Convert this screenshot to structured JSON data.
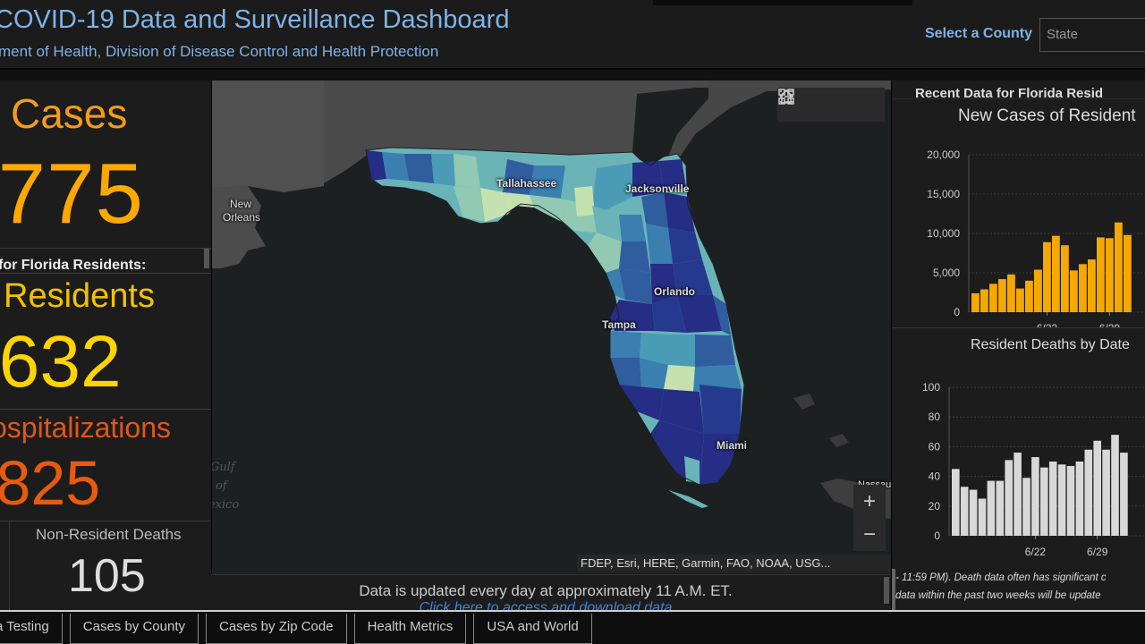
{
  "header": {
    "title": "COVID-19 Data and Surveillance Dashboard",
    "subtitle": "ment of Health, Division of Disease Control and Health Protection",
    "county_label": "Select a County",
    "county_select_value": "State"
  },
  "left": {
    "cases_label": "Cases",
    "cases_value": ",775",
    "residents_caption": "for Florida Residents:",
    "residents_label": "Residents",
    "residents_value": ",632",
    "hospitalizations_label": "ospitalizations",
    "hospitalizations_value": ",825",
    "nonresident_deaths_label": "Non-Resident Deaths",
    "nonresident_deaths_value": "105"
  },
  "map": {
    "labels": {
      "tallahassee": "Tallahassee",
      "jacksonville": "Jacksonville",
      "orlando": "Orlando",
      "tampa": "Tampa",
      "miami": "Miami",
      "new_orleans_1": "New",
      "new_orleans_2": "Orleans",
      "nassau": "Nassau"
    },
    "water": {
      "gulf_1": "Gulf",
      "gulf_2": "of",
      "gulf_3": "exico"
    },
    "attribution": "FDEP, Esri, HERE, Garmin, FAO, NOAA, USG...",
    "tools": {
      "home": "home-icon",
      "legend": "list-icon",
      "basemap": "grid-icon"
    },
    "zoom_in": "+",
    "zoom_out": "−",
    "county_colors": [
      "#262d84",
      "#253a8f",
      "#2f5d9e",
      "#3a7fb0",
      "#4a9cb6",
      "#6ab4b8",
      "#92c9b3",
      "#c5e1b0"
    ]
  },
  "update": {
    "text": "Data is updated every day at approximately 11 A.M. ET.",
    "link": "Click here to access and download data"
  },
  "right": {
    "top_title": "Recent Data for Florida Resid",
    "note_line1": "- 11:59 PM). Death data often has significant c",
    "note_line2": "data within the past two weeks will be update"
  },
  "chart_data": [
    {
      "type": "bar",
      "title": "New Cases of Resident",
      "color": "#f5a800",
      "ylim": [
        0,
        20000
      ],
      "yticks": [
        "0",
        "5,000",
        "10,000",
        "15,000",
        "20,000"
      ],
      "xticks": [
        {
          "label": "6/22",
          "index": 8
        },
        {
          "label": "6/29",
          "index": 15
        }
      ],
      "values": [
        2400,
        2900,
        3600,
        4200,
        4800,
        3000,
        4000,
        5400,
        8900,
        9700,
        8500,
        5300,
        6100,
        6700,
        9500,
        9400,
        11400,
        9800
      ]
    },
    {
      "type": "bar",
      "title": "Resident Deaths by Date",
      "color": "#d8d8d8",
      "ylim": [
        0,
        100
      ],
      "yticks": [
        "0",
        "20",
        "40",
        "60",
        "80",
        "100"
      ],
      "xticks": [
        {
          "label": "6/22",
          "index": 9
        },
        {
          "label": "6/29",
          "index": 16
        }
      ],
      "values": [
        45,
        33,
        31,
        25,
        37,
        37,
        51,
        56,
        39,
        53,
        46,
        50,
        48,
        47,
        50,
        58,
        64,
        58,
        68,
        56
      ]
    }
  ],
  "tabs": [
    "a Testing",
    "Cases by County",
    "Cases by Zip Code",
    "Health Metrics",
    "USA and World"
  ]
}
